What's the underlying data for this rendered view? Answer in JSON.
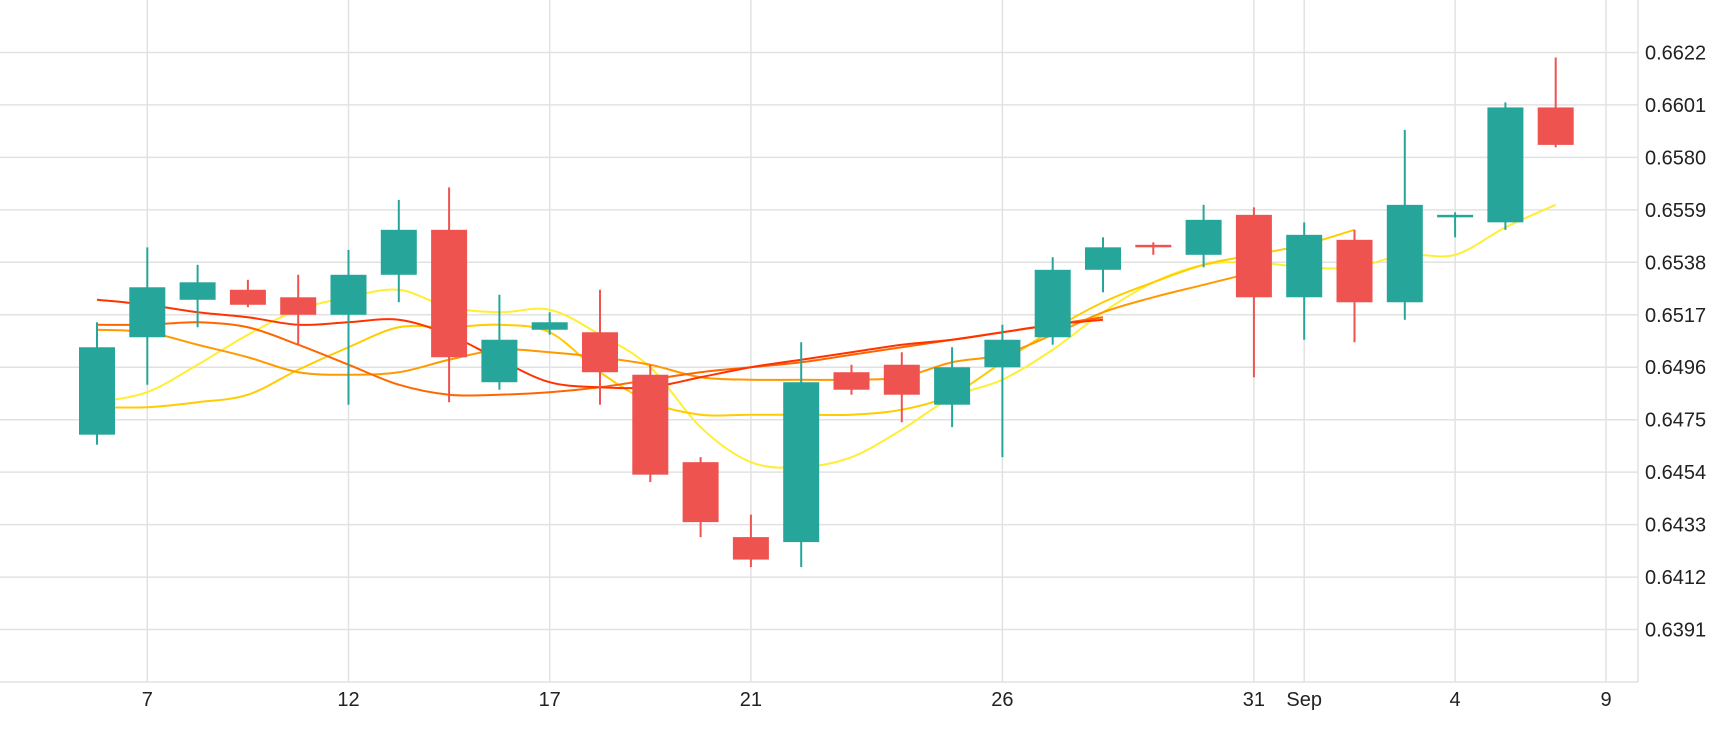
{
  "chart_data": {
    "type": "candlestick",
    "title": "",
    "xlabel": "",
    "ylabel": "",
    "ylim": [
      0.637,
      0.6643
    ],
    "grid": true,
    "y_ticks": [
      "0.6622",
      "0.6601",
      "0.6580",
      "0.6559",
      "0.6538",
      "0.6517",
      "0.6496",
      "0.6475",
      "0.6454",
      "0.6433",
      "0.6412",
      "0.6391"
    ],
    "x_tick_labels": [
      {
        "label": "7",
        "day_index": 1
      },
      {
        "label": "12",
        "day_index": 5
      },
      {
        "label": "17",
        "day_index": 9
      },
      {
        "label": "21",
        "day_index": 13
      },
      {
        "label": "26",
        "day_index": 18
      },
      {
        "label": "31",
        "day_index": 23
      },
      {
        "label": "Sep",
        "day_index": 24
      },
      {
        "label": "4",
        "day_index": 27
      },
      {
        "label": "9",
        "day_index": 30
      }
    ],
    "candles": [
      {
        "day_index": 0,
        "open": 0.6469,
        "high": 0.6514,
        "low": 0.6465,
        "close": 0.6504
      },
      {
        "day_index": 1,
        "open": 0.6508,
        "high": 0.6544,
        "low": 0.6489,
        "close": 0.6528
      },
      {
        "day_index": 2,
        "open": 0.6523,
        "high": 0.6537,
        "low": 0.6512,
        "close": 0.653
      },
      {
        "day_index": 3,
        "open": 0.6527,
        "high": 0.6531,
        "low": 0.652,
        "close": 0.6521
      },
      {
        "day_index": 4,
        "open": 0.6524,
        "high": 0.6533,
        "low": 0.6505,
        "close": 0.6517
      },
      {
        "day_index": 5,
        "open": 0.6517,
        "high": 0.6543,
        "low": 0.6481,
        "close": 0.6533
      },
      {
        "day_index": 6,
        "open": 0.6533,
        "high": 0.6563,
        "low": 0.6522,
        "close": 0.6551
      },
      {
        "day_index": 7,
        "open": 0.6551,
        "high": 0.6568,
        "low": 0.6482,
        "close": 0.65
      },
      {
        "day_index": 8,
        "open": 0.649,
        "high": 0.6525,
        "low": 0.6487,
        "close": 0.6507
      },
      {
        "day_index": 9,
        "open": 0.6511,
        "high": 0.6518,
        "low": 0.6509,
        "close": 0.6514
      },
      {
        "day_index": 10,
        "open": 0.651,
        "high": 0.6527,
        "low": 0.6481,
        "close": 0.6494
      },
      {
        "day_index": 11,
        "open": 0.6493,
        "high": 0.6497,
        "low": 0.645,
        "close": 0.6453
      },
      {
        "day_index": 12,
        "open": 0.6458,
        "high": 0.646,
        "low": 0.6428,
        "close": 0.6434
      },
      {
        "day_index": 13,
        "open": 0.6428,
        "high": 0.6437,
        "low": 0.6416,
        "close": 0.6419
      },
      {
        "day_index": 14,
        "open": 0.6426,
        "high": 0.6506,
        "low": 0.6416,
        "close": 0.649
      },
      {
        "day_index": 15,
        "open": 0.6494,
        "high": 0.6497,
        "low": 0.6485,
        "close": 0.6487
      },
      {
        "day_index": 16,
        "open": 0.6497,
        "high": 0.6502,
        "low": 0.6474,
        "close": 0.6485
      },
      {
        "day_index": 17,
        "open": 0.6481,
        "high": 0.6504,
        "low": 0.6472,
        "close": 0.6496
      },
      {
        "day_index": 18,
        "open": 0.6496,
        "high": 0.6513,
        "low": 0.646,
        "close": 0.6507
      },
      {
        "day_index": 19,
        "open": 0.6508,
        "high": 0.654,
        "low": 0.6505,
        "close": 0.6535
      },
      {
        "day_index": 20,
        "open": 0.6535,
        "high": 0.6548,
        "low": 0.6526,
        "close": 0.6544
      },
      {
        "day_index": 21,
        "open": 0.6545,
        "high": 0.6546,
        "low": 0.6541,
        "close": 0.6544
      },
      {
        "day_index": 22,
        "open": 0.6541,
        "high": 0.6561,
        "low": 0.6536,
        "close": 0.6555
      },
      {
        "day_index": 23,
        "open": 0.6557,
        "high": 0.656,
        "low": 0.6492,
        "close": 0.6524
      },
      {
        "day_index": 24,
        "open": 0.6524,
        "high": 0.6554,
        "low": 0.6507,
        "close": 0.6549
      },
      {
        "day_index": 25,
        "open": 0.6547,
        "high": 0.6551,
        "low": 0.6506,
        "close": 0.6522
      },
      {
        "day_index": 26,
        "open": 0.6522,
        "high": 0.6591,
        "low": 0.6515,
        "close": 0.6561
      },
      {
        "day_index": 27,
        "open": 0.6556,
        "high": 0.6558,
        "low": 0.6548,
        "close": 0.6557
      },
      {
        "day_index": 28,
        "open": 0.6554,
        "high": 0.6602,
        "low": 0.6551,
        "close": 0.66
      },
      {
        "day_index": 29,
        "open": 0.66,
        "high": 0.662,
        "low": 0.6584,
        "close": 0.6585
      }
    ],
    "moving_averages": [
      {
        "color": "#ffee33",
        "points": [
          [
            0,
            0.6482
          ],
          [
            1,
            0.6486
          ],
          [
            2,
            0.6497
          ],
          [
            3,
            0.6509
          ],
          [
            4,
            0.6519
          ],
          [
            5,
            0.6524
          ],
          [
            6,
            0.6527
          ],
          [
            7,
            0.652
          ],
          [
            8,
            0.6518
          ],
          [
            9,
            0.6519
          ],
          [
            10,
            0.6509
          ],
          [
            11,
            0.6496
          ],
          [
            12,
            0.6472
          ],
          [
            13,
            0.6458
          ],
          [
            14,
            0.6456
          ],
          [
            15,
            0.646
          ],
          [
            16,
            0.6471
          ],
          [
            17,
            0.6484
          ],
          [
            18,
            0.6491
          ],
          [
            19,
            0.6503
          ],
          [
            20,
            0.6518
          ],
          [
            21,
            0.653
          ],
          [
            22,
            0.6537
          ],
          [
            23,
            0.6538
          ],
          [
            24,
            0.6536
          ],
          [
            25,
            0.6536
          ],
          [
            26,
            0.6541
          ],
          [
            27,
            0.6541
          ],
          [
            28,
            0.6552
          ],
          [
            29,
            0.6561
          ]
        ]
      },
      {
        "color": "#ffcc00",
        "points": [
          [
            0,
            0.648
          ],
          [
            1,
            0.648
          ],
          [
            2,
            0.6482
          ],
          [
            3,
            0.6485
          ],
          [
            4,
            0.6495
          ],
          [
            5,
            0.6504
          ],
          [
            6,
            0.6512
          ],
          [
            7,
            0.6512
          ],
          [
            8,
            0.6513
          ],
          [
            9,
            0.651
          ],
          [
            10,
            0.6494
          ],
          [
            11,
            0.6482
          ],
          [
            12,
            0.6477
          ],
          [
            13,
            0.6477
          ],
          [
            14,
            0.6477
          ],
          [
            15,
            0.6477
          ],
          [
            16,
            0.6479
          ],
          [
            17,
            0.6485
          ],
          [
            18,
            0.6498
          ],
          [
            19,
            0.6511
          ],
          [
            20,
            0.6522
          ],
          [
            21,
            0.653
          ],
          [
            22,
            0.6537
          ],
          [
            23,
            0.6541
          ],
          [
            24,
            0.6545
          ],
          [
            25,
            0.6551
          ]
        ]
      },
      {
        "color": "#ff9900",
        "points": [
          [
            0,
            0.6511
          ],
          [
            1,
            0.651
          ],
          [
            2,
            0.6505
          ],
          [
            3,
            0.65
          ],
          [
            4,
            0.6494
          ],
          [
            5,
            0.6493
          ],
          [
            6,
            0.6494
          ],
          [
            7,
            0.6499
          ],
          [
            8,
            0.6503
          ],
          [
            9,
            0.6502
          ],
          [
            10,
            0.65
          ],
          [
            11,
            0.6497
          ],
          [
            12,
            0.6492
          ],
          [
            13,
            0.6491
          ],
          [
            14,
            0.6491
          ],
          [
            15,
            0.6491
          ],
          [
            16,
            0.6492
          ],
          [
            17,
            0.6498
          ],
          [
            18,
            0.6501
          ],
          [
            19,
            0.6509
          ],
          [
            20,
            0.6518
          ],
          [
            21,
            0.6524
          ],
          [
            22,
            0.6529
          ],
          [
            23,
            0.6534
          ]
        ]
      },
      {
        "color": "#ff6600",
        "points": [
          [
            0,
            0.6513
          ],
          [
            1,
            0.6513
          ],
          [
            2,
            0.6514
          ],
          [
            3,
            0.6512
          ],
          [
            4,
            0.6505
          ],
          [
            5,
            0.6497
          ],
          [
            6,
            0.6489
          ],
          [
            7,
            0.6485
          ],
          [
            8,
            0.6485
          ],
          [
            9,
            0.6486
          ],
          [
            10,
            0.6488
          ],
          [
            11,
            0.6491
          ],
          [
            12,
            0.6494
          ],
          [
            13,
            0.6496
          ],
          [
            14,
            0.6498
          ],
          [
            15,
            0.6501
          ],
          [
            16,
            0.6504
          ],
          [
            17,
            0.6507
          ],
          [
            18,
            0.651
          ],
          [
            19,
            0.6513
          ],
          [
            20,
            0.6516
          ]
        ]
      },
      {
        "color": "#ff3300",
        "points": [
          [
            0,
            0.6523
          ],
          [
            1,
            0.6521
          ],
          [
            2,
            0.6518
          ],
          [
            3,
            0.6516
          ],
          [
            4,
            0.6513
          ],
          [
            5,
            0.6514
          ],
          [
            6,
            0.6515
          ],
          [
            7,
            0.6509
          ],
          [
            8,
            0.6499
          ],
          [
            9,
            0.649
          ],
          [
            10,
            0.6488
          ],
          [
            11,
            0.6488
          ],
          [
            12,
            0.6492
          ],
          [
            13,
            0.6496
          ],
          [
            14,
            0.6499
          ],
          [
            15,
            0.6502
          ],
          [
            16,
            0.6505
          ],
          [
            17,
            0.6507
          ],
          [
            18,
            0.651
          ],
          [
            19,
            0.6513
          ],
          [
            20,
            0.6515
          ]
        ]
      }
    ],
    "colors": {
      "up": "#26a69a",
      "down": "#ef5350",
      "grid": "#e2e2e2",
      "axis_text": "#222222"
    }
  }
}
